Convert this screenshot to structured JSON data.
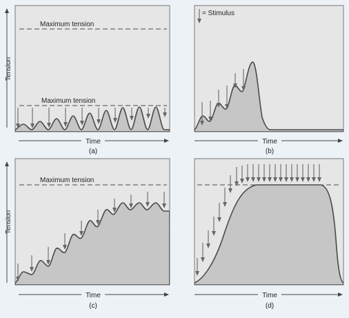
{
  "labels": {
    "max_tension": "Maximum tension",
    "stimulus_legend": "= Stimulus",
    "time": "Time",
    "tension": "Tension"
  },
  "panels": [
    {
      "id": "a",
      "caption": "(a)"
    },
    {
      "id": "b",
      "caption": "(b)"
    },
    {
      "id": "c",
      "caption": "(c)"
    },
    {
      "id": "d",
      "caption": "(d)"
    }
  ],
  "colors": {
    "panel_fill": "#e6e6e6",
    "wave_fill": "#c6c6c6",
    "stroke": "#4a4a4a",
    "arrow": "#666666"
  }
}
